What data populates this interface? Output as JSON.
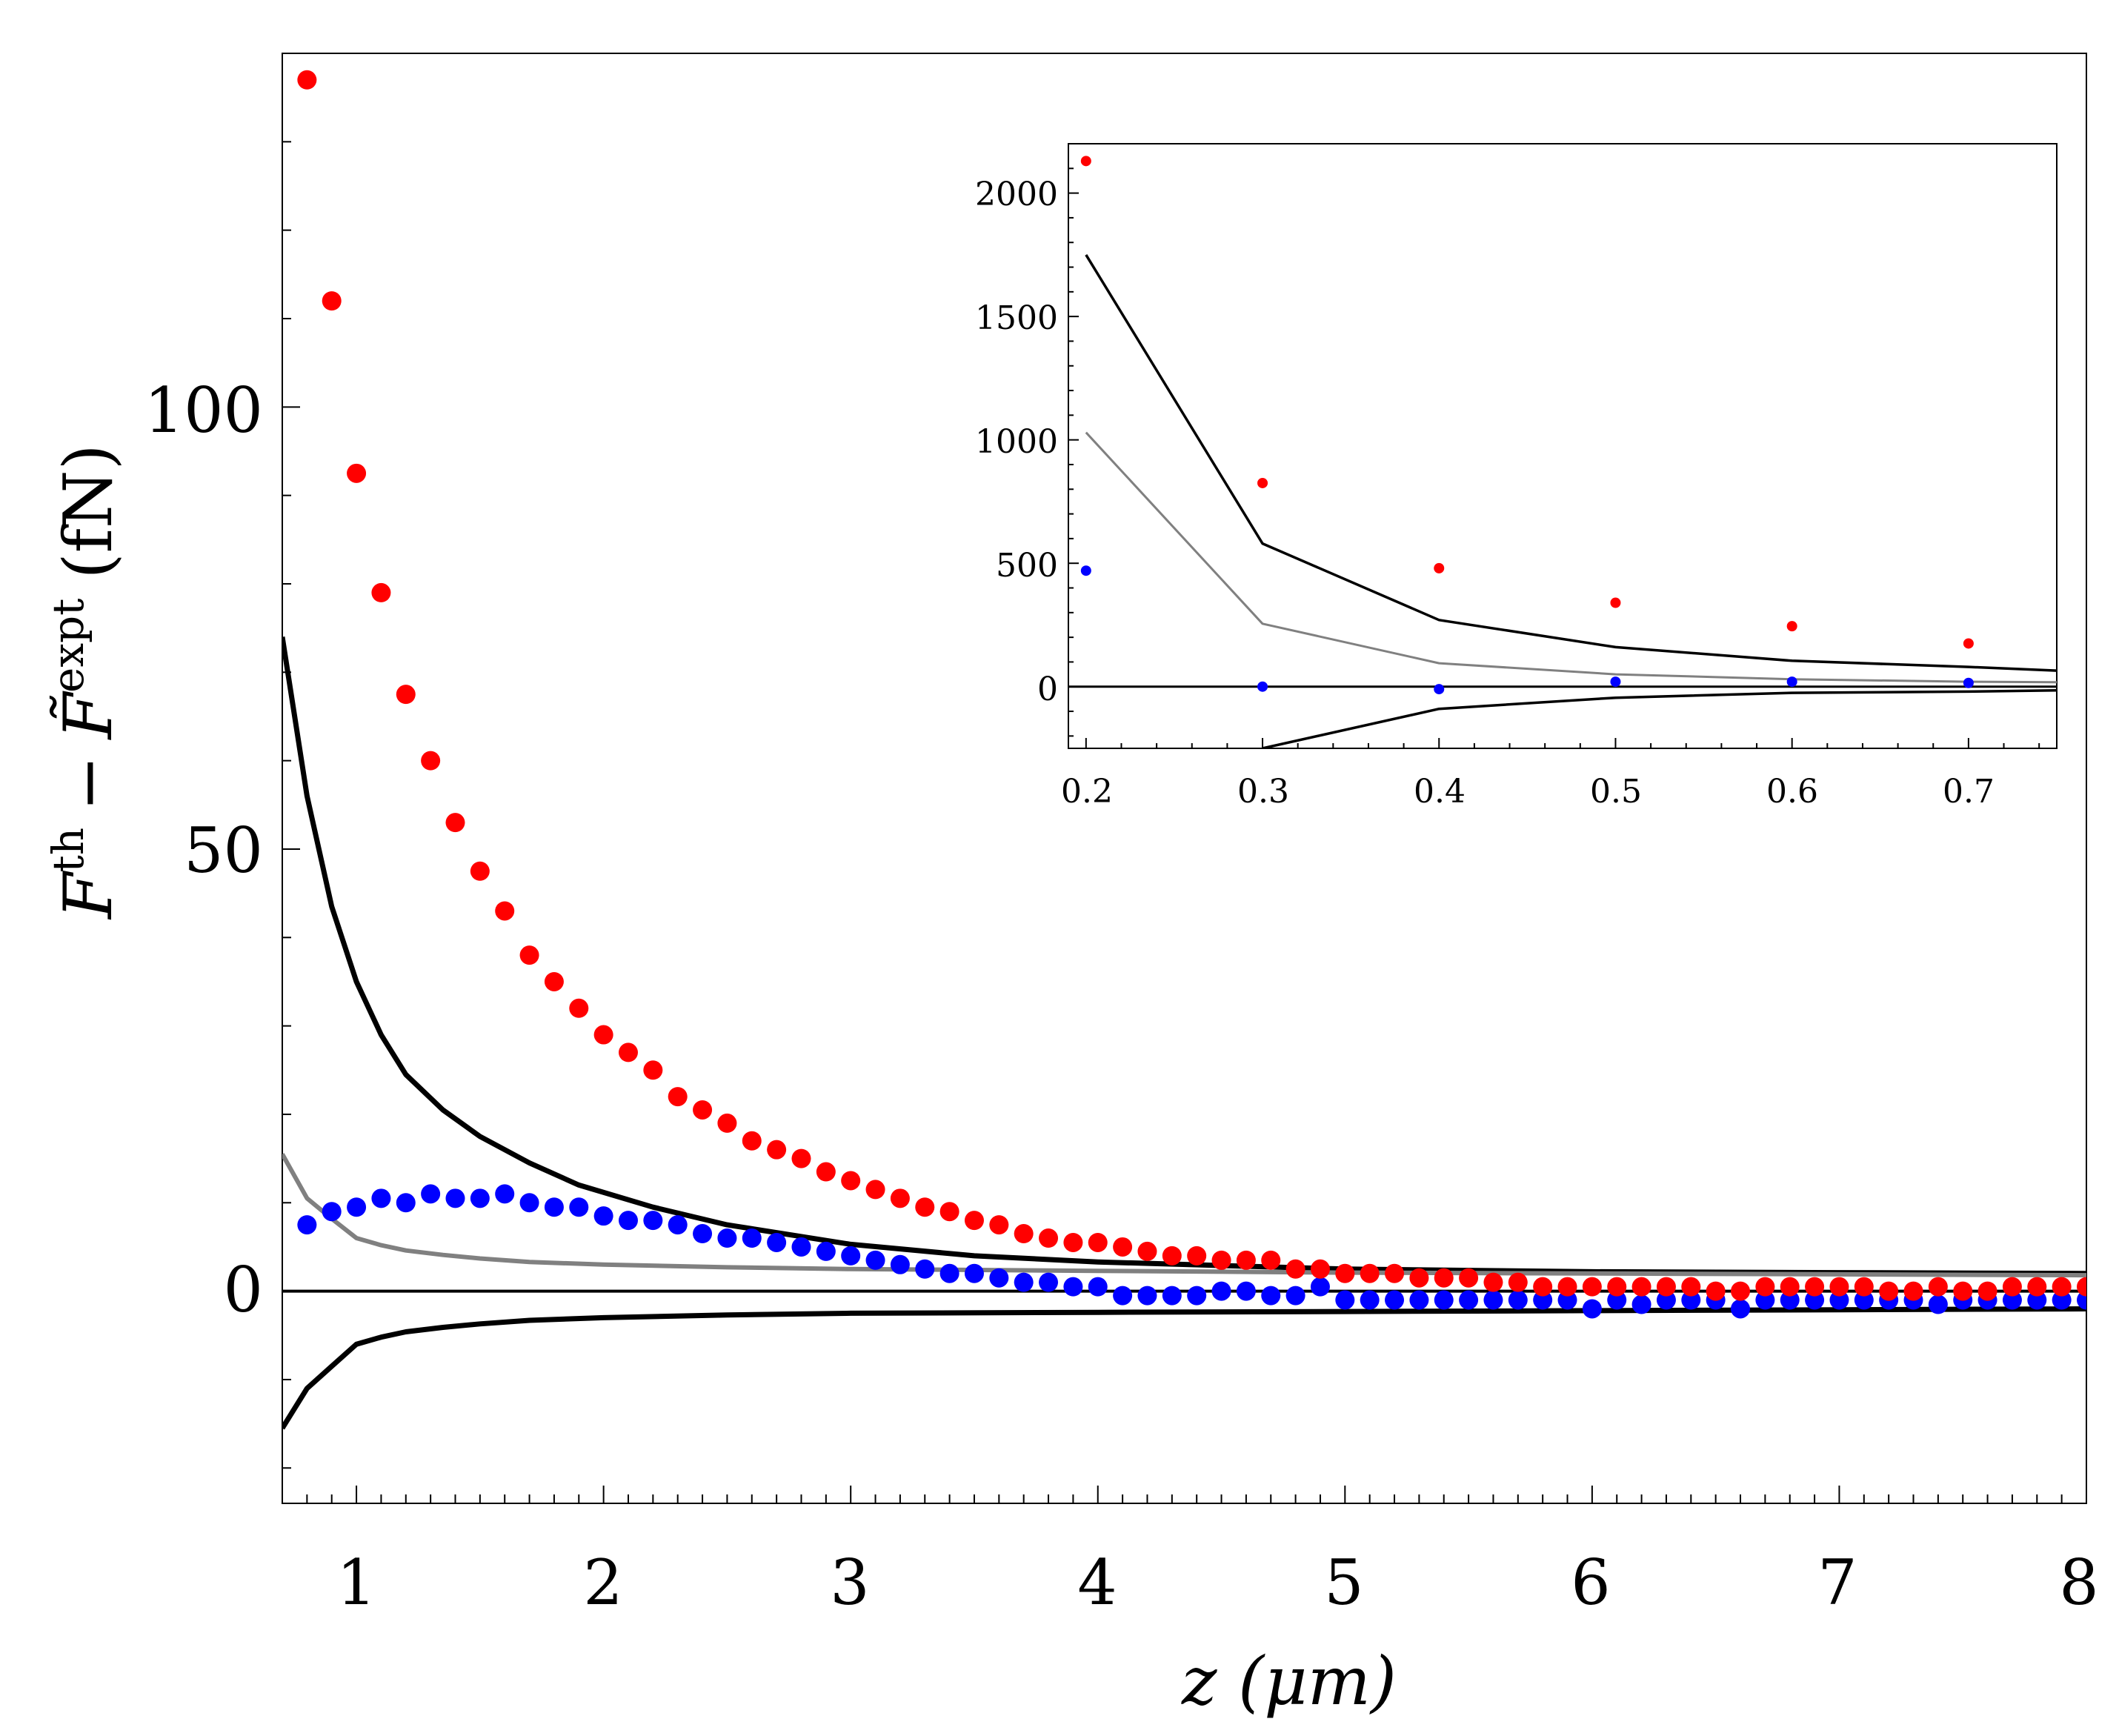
{
  "chart_data": [
    {
      "id": "main",
      "type": "scatter",
      "title": "",
      "xlabel": "z (μm)",
      "ylabel": {
        "base1": "F",
        "sup1": "th",
        "minus": "−",
        "base2": "F̃",
        "sup2": "expt",
        "unit": "(fN)"
      },
      "xlim": [
        0.7,
        8.0
      ],
      "ylim": [
        -24,
        140
      ],
      "x_ticks": [
        "1",
        "2",
        "3",
        "4",
        "5",
        "6",
        "7",
        "8"
      ],
      "y_ticks": [
        "0",
        "50",
        "100"
      ],
      "grid": false,
      "colors": {
        "red": "#ff0000",
        "blue": "#0000ff",
        "black": "#000000",
        "gray": "#808080"
      },
      "series": [
        {
          "name": "red points",
          "kind": "points",
          "color": "#ff0000",
          "x": [
            0.8,
            0.9,
            1.0,
            1.1,
            1.2,
            1.3,
            1.4,
            1.5,
            1.6,
            1.7,
            1.8,
            1.9,
            2.0,
            2.1,
            2.2,
            2.3,
            2.4,
            2.5,
            2.6,
            2.7,
            2.8,
            2.9,
            3.0,
            3.1,
            3.2,
            3.3,
            3.4,
            3.5,
            3.6,
            3.7,
            3.8,
            3.9,
            4.0,
            4.1,
            4.2,
            4.3,
            4.4,
            4.5,
            4.6,
            4.7,
            4.8,
            4.9,
            5.0,
            5.1,
            5.2,
            5.3,
            5.4,
            5.5,
            5.6,
            5.7,
            5.8,
            5.9,
            6.0,
            6.1,
            6.2,
            6.3,
            6.4,
            6.5,
            6.6,
            6.7,
            6.8,
            6.9,
            7.0,
            7.1,
            7.2,
            7.3,
            7.4,
            7.5,
            7.6,
            7.7,
            7.8,
            7.9,
            8.0
          ],
          "y": [
            137,
            112,
            92.5,
            79,
            67.5,
            60,
            53,
            47.5,
            43,
            38,
            35,
            32,
            29,
            27,
            25,
            22,
            20.5,
            19,
            17,
            16,
            15,
            13.5,
            12.5,
            11.5,
            10.5,
            9.5,
            9,
            8,
            7.5,
            6.5,
            6,
            5.5,
            5.5,
            5,
            4.5,
            4,
            4,
            3.5,
            3.5,
            3.5,
            2.5,
            2.5,
            2,
            2,
            2,
            1.5,
            1.5,
            1.5,
            1,
            1,
            0.5,
            0.5,
            0.5,
            0.5,
            0.5,
            0.5,
            0.5,
            0,
            0,
            0.5,
            0.5,
            0.5,
            0.5,
            0.5,
            0,
            0,
            0.5,
            0,
            0,
            0.5,
            0.5,
            0.5,
            0.5
          ]
        },
        {
          "name": "blue points",
          "kind": "points",
          "color": "#0000ff",
          "x": [
            0.8,
            0.9,
            1.0,
            1.1,
            1.2,
            1.3,
            1.4,
            1.5,
            1.6,
            1.7,
            1.8,
            1.9,
            2.0,
            2.1,
            2.2,
            2.3,
            2.4,
            2.5,
            2.6,
            2.7,
            2.8,
            2.9,
            3.0,
            3.1,
            3.2,
            3.3,
            3.4,
            3.5,
            3.6,
            3.7,
            3.8,
            3.9,
            4.0,
            4.1,
            4.2,
            4.3,
            4.4,
            4.5,
            4.6,
            4.7,
            4.8,
            4.9,
            5.0,
            5.1,
            5.2,
            5.3,
            5.4,
            5.5,
            5.6,
            5.7,
            5.8,
            5.9,
            6.0,
            6.1,
            6.2,
            6.3,
            6.4,
            6.5,
            6.6,
            6.7,
            6.8,
            6.9,
            7.0,
            7.1,
            7.2,
            7.3,
            7.4,
            7.5,
            7.6,
            7.7,
            7.8,
            7.9,
            8.0
          ],
          "y": [
            7.5,
            9,
            9.5,
            10.5,
            10,
            11,
            10.5,
            10.5,
            11,
            10,
            9.5,
            9.5,
            8.5,
            8,
            8,
            7.5,
            6.5,
            6,
            6,
            5.5,
            5,
            4.5,
            4,
            3.5,
            3,
            2.5,
            2,
            2,
            1.5,
            1,
            1,
            0.5,
            0.5,
            -0.5,
            -0.5,
            -0.5,
            -0.5,
            0,
            0,
            -0.5,
            -0.5,
            0.5,
            -1,
            -1,
            -1,
            -1,
            -1,
            -1,
            -1,
            -1,
            -1,
            -1,
            -2,
            -1,
            -1.5,
            -1,
            -1,
            -1,
            -2,
            -1,
            -1,
            -1,
            -1,
            -1,
            -1,
            -1,
            -1.5,
            -1,
            -1,
            -1,
            -1,
            -1,
            -1
          ]
        },
        {
          "name": "upper black curve",
          "kind": "line",
          "color": "#000000",
          "x": [
            0.7,
            0.8,
            0.9,
            1.0,
            1.1,
            1.2,
            1.35,
            1.5,
            1.7,
            1.9,
            2.2,
            2.5,
            3.0,
            3.5,
            4.0,
            5.0,
            6.0,
            7.0,
            8.0
          ],
          "y": [
            74,
            56,
            43.5,
            35,
            29,
            24.5,
            20.5,
            17.5,
            14.5,
            12,
            9.5,
            7.5,
            5.3,
            4,
            3.3,
            2.5,
            2.2,
            2.1,
            2.0
          ]
        },
        {
          "name": "gray curve",
          "kind": "line",
          "color": "#808080",
          "x": [
            0.7,
            0.8,
            0.9,
            1.0,
            1.1,
            1.2,
            1.35,
            1.5,
            1.7,
            2.0,
            2.5,
            3.0,
            4.0,
            5.0,
            6.0,
            7.0,
            8.0
          ],
          "y": [
            15.5,
            10.5,
            8.2,
            6,
            5.2,
            4.6,
            4.1,
            3.7,
            3.3,
            3,
            2.7,
            2.5,
            2.3,
            2.1,
            2.0,
            1.9,
            1.8
          ]
        },
        {
          "name": "lower black curve",
          "kind": "line",
          "color": "#000000",
          "x": [
            0.7,
            0.8,
            0.9,
            1.0,
            1.1,
            1.2,
            1.35,
            1.5,
            1.7,
            2.0,
            2.5,
            3.0,
            4.0,
            5.0,
            6.0,
            7.0,
            8.0
          ],
          "y": [
            -15.5,
            -11,
            -8.5,
            -6,
            -5.2,
            -4.6,
            -4.1,
            -3.7,
            -3.3,
            -3,
            -2.7,
            -2.5,
            -2.4,
            -2.3,
            -2.2,
            -2.1,
            -2.0
          ]
        },
        {
          "name": "zero line",
          "kind": "hline",
          "color": "#000000",
          "y": 0
        }
      ]
    },
    {
      "id": "inset",
      "type": "scatter",
      "title": "",
      "xlabel": "",
      "ylabel": "",
      "xlim": [
        0.19,
        0.75
      ],
      "ylim": [
        -250,
        2200
      ],
      "x_ticks": [
        "0.2",
        "0.3",
        "0.4",
        "0.5",
        "0.6",
        "0.7"
      ],
      "y_ticks": [
        "0",
        "500",
        "1000",
        "1500",
        "2000"
      ],
      "grid": false,
      "series": [
        {
          "name": "red points",
          "kind": "points",
          "color": "#ff0000",
          "x": [
            0.2,
            0.3,
            0.4,
            0.5,
            0.6,
            0.7
          ],
          "y": [
            2130,
            825,
            480,
            340,
            245,
            175
          ]
        },
        {
          "name": "blue points",
          "kind": "points",
          "color": "#0000ff",
          "x": [
            0.2,
            0.3,
            0.4,
            0.5,
            0.6,
            0.7
          ],
          "y": [
            470,
            0,
            -10,
            20,
            20,
            15
          ]
        },
        {
          "name": "upper black curve",
          "kind": "line",
          "color": "#000000",
          "x": [
            0.2,
            0.3,
            0.4,
            0.5,
            0.6,
            0.7,
            0.75
          ],
          "y": [
            1750,
            580,
            270,
            160,
            105,
            80,
            65
          ]
        },
        {
          "name": "gray curve",
          "kind": "line",
          "color": "#808080",
          "x": [
            0.2,
            0.3,
            0.4,
            0.5,
            0.6,
            0.7,
            0.75
          ],
          "y": [
            1030,
            255,
            95,
            50,
            30,
            20,
            18
          ]
        },
        {
          "name": "lower black curve",
          "kind": "line",
          "color": "#000000",
          "x": [
            0.3,
            0.4,
            0.5,
            0.6,
            0.7,
            0.75
          ],
          "y": [
            -250,
            -90,
            -45,
            -25,
            -20,
            -15
          ]
        },
        {
          "name": "zero line",
          "kind": "hline",
          "color": "#000000",
          "y": 0
        }
      ]
    }
  ]
}
